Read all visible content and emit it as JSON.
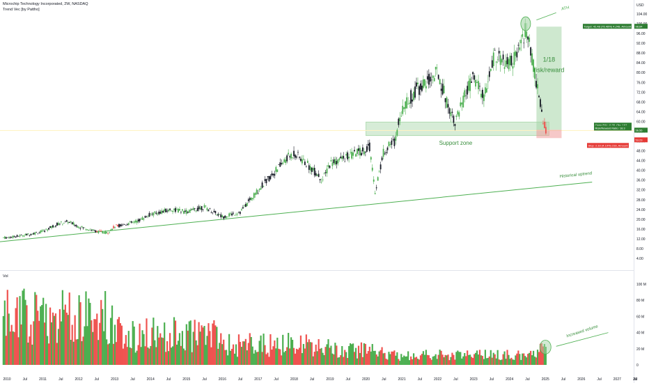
{
  "header": {
    "title": "Microchip Technology Incorporated, 2W, NASDAQ",
    "indicator": "Trend Vec [by Pattho]"
  },
  "price_axis": {
    "currency": "USD",
    "ticks": [
      "104.00",
      "100.00",
      "96.00",
      "92.00",
      "88.00",
      "84.00",
      "80.00",
      "76.00",
      "72.00",
      "68.00",
      "64.00",
      "60.00",
      "56.00",
      "52.00",
      "48.00",
      "44.00",
      "40.00",
      "36.00",
      "32.00",
      "28.00",
      "24.00",
      "20.00",
      "16.00",
      "12.00",
      "8.00",
      "4.00"
    ],
    "badges": {
      "target": "98.84",
      "open": "56.56",
      "close": "53.23"
    }
  },
  "volume_axis": {
    "label": "Vol",
    "ticks": [
      "100 M",
      "80 M",
      "60 M",
      "40 M",
      "20 M",
      "0"
    ]
  },
  "time_axis": {
    "ticks": [
      "2010",
      "Jul",
      "2011",
      "Jul",
      "2012",
      "Jul",
      "2013",
      "Jul",
      "2014",
      "Jul",
      "2015",
      "Jul",
      "2016",
      "Jul",
      "2017",
      "Jul",
      "2018",
      "Jul",
      "2019",
      "Jul",
      "2020",
      "Jul",
      "2021",
      "Jul",
      "2022",
      "Jul",
      "2023",
      "Jul",
      "2024",
      "Jul",
      "2025",
      "Jul",
      "2026",
      "Jul",
      "2027",
      "Jul",
      "20"
    ]
  },
  "annotations": {
    "ath": "ATH",
    "risk_reward": "1/18\nrisk/reward",
    "support_zone": "Support zone",
    "historical_uptrend": "Historical uptrend",
    "increased_volume": "Increased volume",
    "target_label": "Target: 42.48 (76.48%) 4,248, Amount: 5551.54",
    "open_label": "Open P&L: 0.35, Qty: 107",
    "rr_label": "Risk/Reward Ratio: 18.3",
    "stop_label": "Stop: 2.33 (4.19%) 233, Amount: 750"
  },
  "colors": {
    "up": "#26a69a",
    "bull": "#4caf50",
    "bear": "#ef5350",
    "zone": "#c8e6c9",
    "uptrend": "#4caf50"
  },
  "chart_data": {
    "type": "candlestick",
    "title": "Microchip Technology Incorporated, 2W, NASDAQ",
    "x_range": [
      "2010",
      "2027"
    ],
    "ylim": [
      4,
      104
    ],
    "price_path": [
      [
        2010,
        12.5
      ],
      [
        2010.5,
        13.5
      ],
      [
        2011,
        15
      ],
      [
        2011.4,
        18
      ],
      [
        2011.7,
        19
      ],
      [
        2012,
        17
      ],
      [
        2012.5,
        15
      ],
      [
        2012.8,
        14.5
      ],
      [
        2013,
        17
      ],
      [
        2013.6,
        19
      ],
      [
        2014,
        22
      ],
      [
        2014.6,
        24
      ],
      [
        2015,
        23
      ],
      [
        2015.5,
        25
      ],
      [
        2016,
        21
      ],
      [
        2016.5,
        23
      ],
      [
        2017,
        32
      ],
      [
        2017.5,
        40
      ],
      [
        2017.8,
        45
      ],
      [
        2018,
        47
      ],
      [
        2018.4,
        42
      ],
      [
        2018.8,
        36
      ],
      [
        2019,
        43
      ],
      [
        2019.4,
        45
      ],
      [
        2019.9,
        48
      ],
      [
        2020.1,
        50
      ],
      [
        2020.25,
        31
      ],
      [
        2020.5,
        48
      ],
      [
        2020.8,
        52
      ],
      [
        2021,
        65
      ],
      [
        2021.4,
        73
      ],
      [
        2021.7,
        76
      ],
      [
        2022,
        80
      ],
      [
        2022.3,
        66
      ],
      [
        2022.5,
        60
      ],
      [
        2022.8,
        72
      ],
      [
        2023,
        78
      ],
      [
        2023.3,
        70
      ],
      [
        2023.6,
        88
      ],
      [
        2023.9,
        83
      ],
      [
        2024.2,
        86
      ],
      [
        2024.45,
        98
      ],
      [
        2024.6,
        88
      ],
      [
        2024.8,
        72
      ],
      [
        2024.95,
        60
      ],
      [
        2025.05,
        53.2
      ]
    ],
    "volume_range": [
      0,
      100
    ],
    "volume_unit": "M"
  }
}
